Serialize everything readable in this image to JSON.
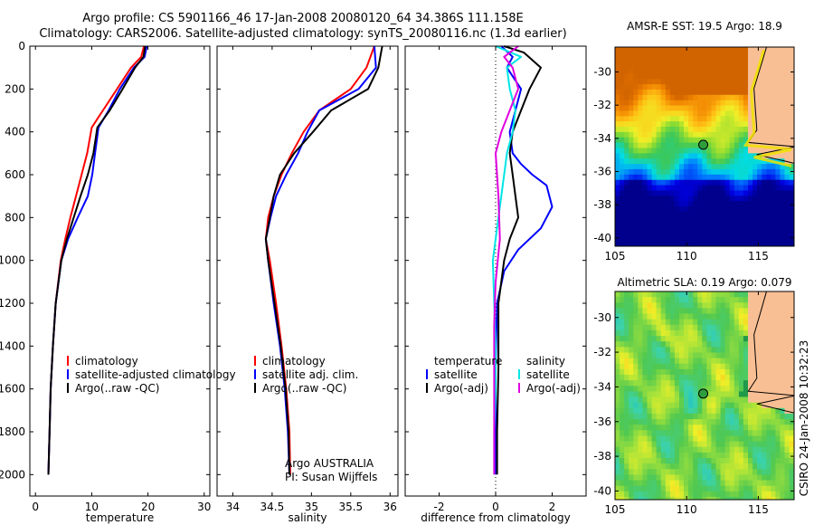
{
  "header": {
    "line1": "Argo profile: CS 5901166_46 17-Jan-2008 20080120_64 34.386S 111.158E",
    "line2": "Climatology: CARS2006. Satellite-adjusted climatology: synTS_20080116.nc (1.3d earlier)"
  },
  "side_stamp": "CSIRO 24-Jan-2008 10:32:23",
  "colors": {
    "climatology": "#ff0000",
    "satellite": "#0000ff",
    "argo": "#000000",
    "sat_diff_salinity": "#00e5e5",
    "argo_diff_salinity": "#e000e0",
    "land": "#f9bf94",
    "marker": "#2e9e3c"
  },
  "chart_data": [
    {
      "id": "temperature",
      "type": "line",
      "xlabel": "temperature",
      "ylabel": "",
      "xlim": [
        -1,
        31
      ],
      "ylim": [
        2100,
        0
      ],
      "yreversed": true,
      "xticks": [
        0,
        10,
        20,
        30
      ],
      "yticks": [
        0,
        200,
        400,
        600,
        800,
        1000,
        1200,
        1400,
        1600,
        1800,
        2000
      ],
      "legend": {
        "placement": "lower-middle",
        "entries": [
          "climatology",
          "satellite-adjusted climatology",
          "Argo(..raw -QC)"
        ]
      },
      "series": [
        {
          "name": "climatology",
          "color": "climatology",
          "x": [
            19.3,
            18.8,
            17.0,
            14.5,
            12.0,
            10.0,
            9.2,
            8.2,
            7.2,
            6.2,
            5.3,
            4.5,
            3.6,
            3.1,
            2.7,
            2.5,
            2.3
          ],
          "y": [
            0,
            50,
            100,
            200,
            300,
            380,
            500,
            600,
            700,
            800,
            900,
            1000,
            1200,
            1400,
            1600,
            1800,
            2000
          ]
        },
        {
          "name": "satellite-adjusted climatology",
          "color": "satellite",
          "x": [
            19.8,
            19.4,
            17.5,
            15.0,
            13.0,
            11.2,
            10.6,
            10.1,
            9.3,
            7.5,
            5.8,
            4.6,
            3.6,
            3.1,
            2.7,
            2.5,
            2.3
          ],
          "y": [
            0,
            50,
            100,
            200,
            300,
            380,
            500,
            600,
            700,
            800,
            900,
            1000,
            1200,
            1400,
            1600,
            1800,
            2000
          ]
        },
        {
          "name": "Argo(..raw -QC)",
          "color": "argo",
          "x": [
            19.5,
            19.2,
            17.7,
            15.5,
            13.2,
            11.0,
            10.3,
            9.3,
            8.0,
            6.8,
            5.6,
            4.6,
            3.6,
            3.1,
            2.7,
            2.5,
            2.3
          ],
          "y": [
            0,
            50,
            100,
            200,
            300,
            380,
            500,
            600,
            700,
            800,
            900,
            1000,
            1200,
            1400,
            1600,
            1800,
            2000
          ]
        }
      ]
    },
    {
      "id": "salinity",
      "type": "line",
      "xlabel": "salinity",
      "ylabel": "",
      "xlim": [
        33.8,
        36.1
      ],
      "ylim": [
        2100,
        0
      ],
      "yreversed": true,
      "xticks": [
        34,
        34.5,
        35,
        35.5,
        36
      ],
      "ytick_labels_shown": false,
      "legend": {
        "placement": "lower-middle",
        "entries": [
          "climatology",
          "satellite adj. clim.",
          "Argo(..raw -QC)"
        ]
      },
      "annotations": [
        "Argo AUSTRALIA",
        "PI: Susan Wijffels"
      ],
      "series": [
        {
          "name": "climatology",
          "color": "climatology",
          "x": [
            35.8,
            35.7,
            35.5,
            35.1,
            34.9,
            34.75,
            34.62,
            34.52,
            34.45,
            34.42,
            34.47,
            34.55,
            34.62,
            34.68,
            34.72,
            34.73
          ],
          "y": [
            0,
            100,
            200,
            300,
            400,
            500,
            600,
            700,
            800,
            900,
            1000,
            1200,
            1400,
            1600,
            1800,
            2000
          ]
        },
        {
          "name": "satellite adj. clim.",
          "color": "satellite",
          "x": [
            35.8,
            35.82,
            35.6,
            35.1,
            34.95,
            34.83,
            34.68,
            34.55,
            34.48,
            34.42,
            34.45,
            34.52,
            34.6,
            34.66,
            34.7,
            34.72
          ],
          "y": [
            0,
            100,
            200,
            300,
            400,
            500,
            600,
            700,
            800,
            900,
            1000,
            1200,
            1400,
            1600,
            1800,
            2000
          ]
        },
        {
          "name": "Argo(..raw -QC)",
          "color": "argo",
          "x": [
            35.9,
            35.85,
            35.72,
            35.25,
            35.02,
            34.78,
            34.6,
            34.52,
            34.47,
            34.42,
            34.45,
            34.53,
            34.61,
            34.67,
            34.71,
            34.72
          ],
          "y": [
            0,
            100,
            200,
            300,
            400,
            500,
            600,
            700,
            800,
            900,
            1000,
            1200,
            1400,
            1600,
            1800,
            2000
          ]
        }
      ]
    },
    {
      "id": "difference",
      "type": "line",
      "xlabel": "difference from climatology",
      "ylabel": "",
      "xlim": [
        -3.2,
        3.2
      ],
      "ylim": [
        2100,
        0
      ],
      "yreversed": true,
      "xticks": [
        -2,
        0,
        2
      ],
      "ytick_labels_shown": false,
      "legend": {
        "placement": "lower-middle",
        "groups": [
          {
            "title": "temperature",
            "entries": [
              "satellite",
              "Argo(-adj)"
            ]
          },
          {
            "title": "salinity",
            "entries": [
              "satellite",
              "Argo(-adj)"
            ]
          }
        ]
      },
      "series": [
        {
          "name": "satellite",
          "group": "temperature",
          "color": "satellite",
          "x": [
            0.2,
            0.6,
            0.4,
            0.9,
            0.7,
            0.5,
            0.6,
            0.9,
            1.3,
            1.8,
            2.0,
            1.6,
            0.8,
            0.3,
            0.05,
            0.0,
            0.0,
            0.0
          ],
          "y": [
            0,
            50,
            100,
            200,
            300,
            400,
            500,
            550,
            600,
            650,
            750,
            850,
            950,
            1050,
            1200,
            1500,
            1800,
            2000
          ]
        },
        {
          "name": "Argo(-adj)",
          "group": "temperature",
          "color": "argo",
          "x": [
            0.3,
            1.0,
            1.6,
            1.2,
            0.9,
            0.6,
            0.5,
            0.6,
            0.7,
            0.8,
            0.5,
            0.3,
            0.1,
            0.1,
            0.05,
            0.05
          ],
          "y": [
            0,
            30,
            100,
            200,
            300,
            400,
            500,
            600,
            700,
            800,
            900,
            1000,
            1200,
            1500,
            1800,
            2000
          ]
        },
        {
          "name": "satellite",
          "group": "salinity",
          "color": "sat_diff_salinity",
          "x": [
            0.0,
            0.9,
            0.4,
            0.5,
            0.7,
            0.6,
            0.4,
            0.3,
            0.1,
            -0.1,
            -0.05,
            0.0,
            0.0,
            -0.05,
            -0.05
          ],
          "y": [
            0,
            50,
            100,
            200,
            300,
            400,
            500,
            600,
            800,
            1000,
            1200,
            1400,
            1600,
            1800,
            2000
          ]
        },
        {
          "name": "Argo(-adj)",
          "group": "salinity",
          "color": "argo_diff_salinity",
          "x": [
            0.8,
            0.3,
            0.6,
            0.8,
            0.5,
            0.2,
            0.0,
            0.1,
            0.15,
            0.0,
            -0.05,
            -0.05,
            -0.05,
            -0.05
          ],
          "y": [
            0,
            50,
            100,
            200,
            300,
            400,
            500,
            700,
            900,
            1100,
            1300,
            1500,
            1700,
            2000
          ]
        }
      ]
    },
    {
      "id": "sst_map",
      "type": "heatmap",
      "title": "AMSR-E SST: 19.5 Argo: 18.9",
      "xlim": [
        105,
        117.5
      ],
      "ylim": [
        -40.5,
        -28.5
      ],
      "xticks": [
        105,
        110,
        115
      ],
      "yticks": [
        -30,
        -32,
        -34,
        -36,
        -38,
        -40
      ],
      "marker": {
        "lon": 111.158,
        "lat": -34.386
      }
    },
    {
      "id": "sla_map",
      "type": "heatmap",
      "title": "Altimetric SLA: 0.19 Argo: 0.079",
      "xlim": [
        105,
        117.5
      ],
      "ylim": [
        -40.5,
        -28.5
      ],
      "xticks": [
        105,
        110,
        115
      ],
      "yticks": [
        -30,
        -32,
        -34,
        -36,
        -38,
        -40
      ],
      "marker": {
        "lon": 111.158,
        "lat": -34.386
      }
    }
  ]
}
